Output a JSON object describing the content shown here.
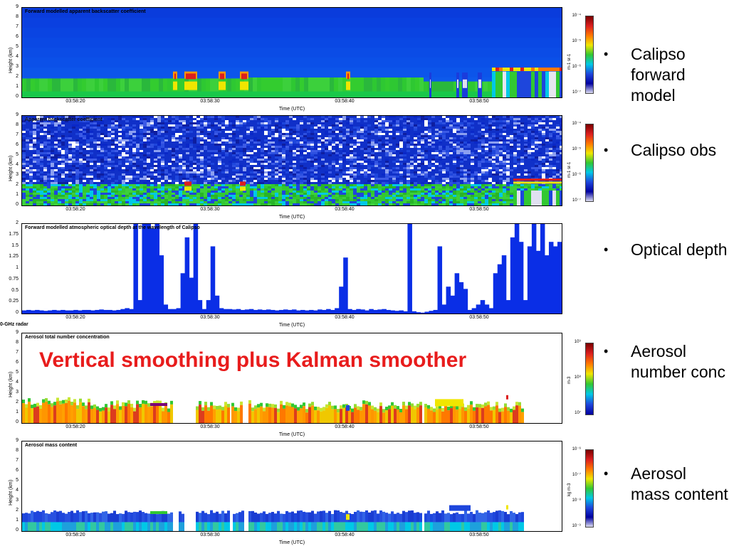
{
  "overlay_text": "Vertical smoothing plus Kalman smoother",
  "radar_label": "0-GHz  radar",
  "xaxis_label": "Time (UTC)",
  "yaxis_label": "Height (km)",
  "xticks": [
    "03:58:20",
    "03:58:30",
    "03:58:40",
    "03:58:50"
  ],
  "panels": [
    {
      "title": "Forward modelled apparent backscatter coefficient",
      "yticks": [
        "9",
        "8",
        "7",
        "6",
        "5",
        "4",
        "3",
        "2",
        "1",
        "0"
      ],
      "cb_ticks": [
        "10⁻⁴",
        "10⁻⁵",
        "10⁻⁶",
        "10⁻⁷"
      ],
      "cb_unit": "m-1 sr-1"
    },
    {
      "title": "Apparent backscatter coefficient",
      "yticks": [
        "9",
        "8",
        "7",
        "6",
        "5",
        "4",
        "3",
        "2",
        "1",
        "0"
      ],
      "cb_ticks": [
        "10⁻⁴",
        "10⁻⁵",
        "10⁻⁶",
        "10⁻⁷"
      ],
      "cb_unit": "m-1 sr-1"
    },
    {
      "title": "Forward modelled atmospheric optical depth at the wavelength of Calipso",
      "yticks": [
        "2",
        "1.75",
        "1.5",
        "1.25",
        "1",
        "0.75",
        "0.5",
        "0.25",
        "0"
      ]
    },
    {
      "title": "Aerosol total number concentration",
      "yticks": [
        "9",
        "8",
        "7",
        "6",
        "5",
        "4",
        "3",
        "2",
        "1",
        "0"
      ],
      "cb_ticks": [
        "10⁹",
        "10⁸",
        "10⁷"
      ],
      "cb_unit": "m-3"
    },
    {
      "title": "Aerosol mass content",
      "yticks": [
        "9",
        "8",
        "7",
        "6",
        "5",
        "4",
        "3",
        "2",
        "1",
        "0"
      ],
      "cb_ticks": [
        "10⁻⁶",
        "10⁻⁷",
        "10⁻⁸",
        "10⁻⁹"
      ],
      "cb_unit": "kg m-3"
    }
  ],
  "bullets": [
    {
      "text": "Calipso forward model"
    },
    {
      "text": "Calipso obs"
    },
    {
      "text": "Optical depth"
    },
    {
      "text": "Aerosol number conc"
    },
    {
      "text": "Aerosol mass content"
    }
  ],
  "colors": {
    "jet_dark_blue": "#0000a0",
    "jet_blue": "#1e46dc",
    "jet_cyan": "#00c8e6",
    "jet_green": "#32c832",
    "jet_yellow": "#f0e600",
    "jet_orange": "#ff7800",
    "jet_red": "#dc1e1e",
    "overlay_red": "#e81c1c",
    "optical_depth_fill": "#0a2ee6"
  },
  "chart_data": [
    {
      "type": "heatmap",
      "title": "Forward modelled apparent backscatter coefficient",
      "xlabel": "Time (UTC)",
      "ylabel": "Height (km)",
      "ylim": [
        0,
        9
      ],
      "xticks": [
        "03:58:20",
        "03:58:30",
        "03:58:40",
        "03:58:50"
      ],
      "colorbar": {
        "unit": "m-1 sr-1",
        "range": [
          "10^-7",
          "10^-4"
        ],
        "scale": "log"
      }
    },
    {
      "type": "heatmap",
      "title": "Apparent backscatter coefficient",
      "xlabel": "Time (UTC)",
      "ylabel": "Height (km)",
      "ylim": [
        0,
        9
      ],
      "xticks": [
        "03:58:20",
        "03:58:30",
        "03:58:40",
        "03:58:50"
      ],
      "colorbar": {
        "unit": "m-1 sr-1",
        "range": [
          "10^-7",
          "10^-4"
        ],
        "scale": "log"
      }
    },
    {
      "type": "area",
      "title": "Forward modelled atmospheric optical depth at the wavelength of Calipso",
      "xlabel": "Time (UTC)",
      "ylim": [
        0,
        2
      ],
      "xticks": [
        "03:58:20",
        "03:58:30",
        "03:58:40",
        "03:58:50"
      ],
      "series": [
        {
          "values": [
            0.07,
            0.08,
            0.07,
            0.08,
            0.07,
            0.06,
            0.07,
            0.08,
            0.07,
            0.08,
            0.07,
            0.07,
            0.08,
            0.07,
            0.08,
            0.08,
            0.07,
            0.08,
            0.09,
            0.08,
            0.08,
            0.07,
            0.08,
            0.1,
            0.12,
            0.1,
            2.0,
            0.3,
            2.0,
            2.0,
            1.9,
            2.0,
            1.3,
            0.2,
            0.1,
            0.1,
            0.12,
            0.9,
            1.7,
            0.8,
            2.0,
            0.3,
            0.1,
            0.3,
            1.5,
            0.4,
            0.12,
            0.1,
            0.1,
            0.09,
            0.1,
            0.08,
            0.09,
            0.1,
            0.08,
            0.09,
            0.08,
            0.09,
            0.08,
            0.07,
            0.08,
            0.09,
            0.08,
            0.09,
            0.07,
            0.08,
            0.07,
            0.08,
            0.07,
            0.09,
            0.08,
            0.1,
            0.08,
            0.12,
            0.6,
            1.25,
            0.1,
            0.08,
            0.1,
            0.09,
            0.07,
            0.1,
            0.08,
            0.09,
            0.1,
            0.08,
            0.07,
            0.06,
            0.07,
            0.05,
            2.0,
            0.05,
            0.03,
            0.02,
            0.04,
            0.06,
            0.08,
            1.5,
            0.2,
            0.6,
            0.4,
            0.9,
            0.7,
            0.55,
            0.08,
            0.12,
            0.2,
            0.3,
            0.2,
            0.12,
            0.9,
            1.1,
            1.3,
            0.3,
            1.7,
            2.0,
            1.6,
            0.3,
            1.5,
            2.0,
            1.4,
            2.0,
            1.3,
            1.6,
            1.5,
            1.6
          ]
        }
      ]
    },
    {
      "type": "heatmap",
      "title": "Aerosol total number concentration",
      "xlabel": "Time (UTC)",
      "ylabel": "Height (km)",
      "ylim": [
        0,
        9
      ],
      "xticks": [
        "03:58:20",
        "03:58:30",
        "03:58:40",
        "03:58:50"
      ],
      "colorbar": {
        "unit": "m-3",
        "range": [
          "10^7",
          "10^9"
        ],
        "scale": "log"
      }
    },
    {
      "type": "heatmap",
      "title": "Aerosol mass content",
      "xlabel": "Time (UTC)",
      "ylabel": "Height (km)",
      "ylim": [
        0,
        9
      ],
      "xticks": [
        "03:58:20",
        "03:58:30",
        "03:58:40",
        "03:58:50"
      ],
      "colorbar": {
        "unit": "kg m-3",
        "range": [
          "10^-9",
          "10^-6"
        ],
        "scale": "log"
      }
    }
  ]
}
